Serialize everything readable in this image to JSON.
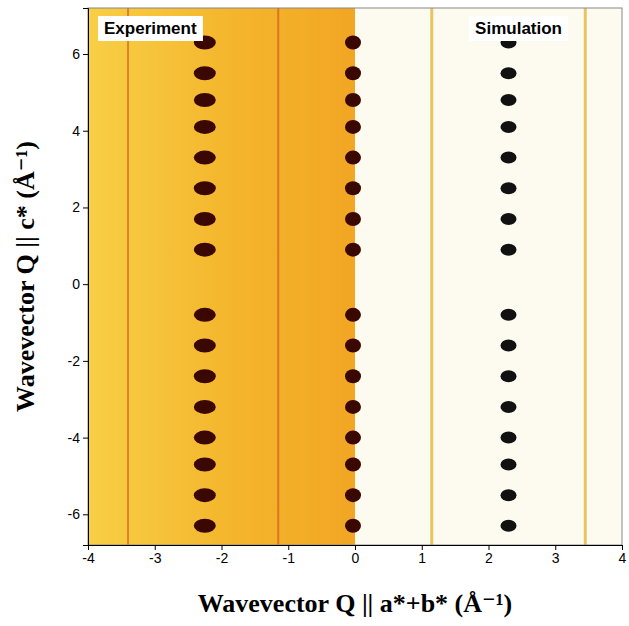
{
  "chart_data": {
    "type": "scatter",
    "x_label": "Wavevector Q || a*+b* (Å⁻¹)",
    "y_label": "Wavevector Q || c* (Å⁻¹)",
    "xlim": [
      -4,
      4
    ],
    "ylim": [
      -6.8,
      7.2
    ],
    "xticks": [
      -4,
      -3,
      -2,
      -1,
      0,
      1,
      2,
      3,
      4
    ],
    "yticks": [
      -6,
      -4,
      -2,
      0,
      2,
      4,
      6
    ],
    "marker": "ellipse",
    "series": [
      {
        "name": "Experiment",
        "color": "#3a0800",
        "x": [
          -2.25,
          -2.25,
          -2.25,
          -2.25,
          -2.25,
          -2.25,
          -2.25,
          -2.25,
          -2.25,
          -2.25,
          -2.25,
          -2.25,
          -2.25,
          -2.25,
          -2.25,
          -2.25,
          -0.03,
          -0.03,
          -0.03,
          -0.03,
          -0.03,
          -0.03,
          -0.03,
          -0.03,
          -0.03,
          -0.03,
          -0.03,
          -0.03,
          -0.03,
          -0.03,
          -0.03,
          -0.03
        ],
        "values": [
          6.3,
          5.5,
          4.8,
          4.1,
          3.3,
          2.5,
          1.7,
          0.9,
          -0.8,
          -1.6,
          -2.4,
          -3.2,
          -4.0,
          -4.7,
          -5.5,
          -6.3,
          6.3,
          5.5,
          4.8,
          4.1,
          3.3,
          2.5,
          1.7,
          0.9,
          -0.8,
          -1.6,
          -2.4,
          -3.2,
          -4.0,
          -4.7,
          -5.5,
          -6.3
        ]
      },
      {
        "name": "Simulation",
        "color": "#111111",
        "x": [
          2.3,
          2.3,
          2.3,
          2.3,
          2.3,
          2.3,
          2.3,
          2.3,
          2.3,
          2.3,
          2.3,
          2.3,
          2.3,
          2.3,
          2.3,
          2.3
        ],
        "values": [
          6.3,
          5.5,
          4.8,
          4.1,
          3.3,
          2.5,
          1.7,
          0.9,
          -0.8,
          -1.6,
          -2.4,
          -3.2,
          -4.0,
          -4.7,
          -5.5,
          -6.3
        ]
      }
    ],
    "rods_x": [
      -3.4,
      -1.15,
      1.15,
      3.45
    ]
  }
}
